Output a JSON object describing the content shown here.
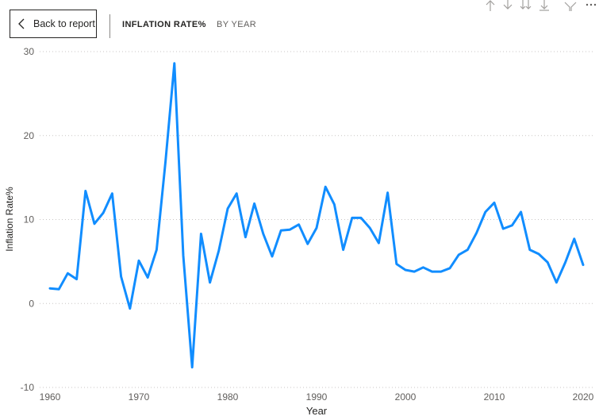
{
  "header": {
    "back_label": "Back to report",
    "title": "INFLATION RATE%",
    "subtitle": "BY YEAR"
  },
  "toolbar": {
    "icons": [
      "arrow-up-icon",
      "arrow-down-icon",
      "double-arrow-down-icon",
      "expand-hierarchy-icon",
      "filter-icon",
      "more-options-icon"
    ]
  },
  "colors": {
    "series": "#118dff",
    "grid": "#c8c6c4",
    "text": "#605e5c"
  },
  "chart_data": {
    "type": "line",
    "title": "",
    "xlabel": "Year",
    "ylabel": "Inflation Rate%",
    "xlim": [
      1960,
      2020
    ],
    "ylim": [
      -10,
      30
    ],
    "x_ticks": [
      1960,
      1970,
      1980,
      1990,
      2000,
      2010,
      2020
    ],
    "y_ticks": [
      -10,
      0,
      10,
      20,
      30
    ],
    "grid": true,
    "series": [
      {
        "name": "",
        "x": [
          1960,
          1961,
          1962,
          1963,
          1964,
          1965,
          1966,
          1967,
          1968,
          1969,
          1970,
          1971,
          1972,
          1973,
          1974,
          1975,
          1976,
          1977,
          1978,
          1979,
          1980,
          1981,
          1982,
          1983,
          1984,
          1985,
          1986,
          1987,
          1988,
          1989,
          1990,
          1991,
          1992,
          1993,
          1994,
          1995,
          1996,
          1997,
          1998,
          1999,
          2000,
          2001,
          2002,
          2003,
          2004,
          2005,
          2006,
          2007,
          2008,
          2009,
          2010,
          2011,
          2012,
          2013,
          2014,
          2015,
          2016,
          2017,
          2018,
          2019,
          2020
        ],
        "y": [
          1.8,
          1.7,
          3.6,
          2.9,
          13.4,
          9.5,
          10.8,
          13.1,
          3.2,
          -0.6,
          5.1,
          3.1,
          6.4,
          16.9,
          28.6,
          5.7,
          -7.6,
          8.3,
          2.5,
          6.3,
          11.3,
          13.1,
          7.9,
          11.9,
          8.3,
          5.6,
          8.7,
          8.8,
          9.4,
          7.1,
          9.0,
          13.9,
          11.8,
          6.4,
          10.2,
          10.2,
          9.0,
          7.2,
          13.2,
          4.7,
          4.0,
          3.8,
          4.3,
          3.8,
          3.8,
          4.2,
          5.8,
          6.4,
          8.4,
          10.9,
          12.0,
          8.9,
          9.3,
          10.9,
          6.4,
          5.9,
          4.9,
          2.5,
          4.9,
          7.7,
          4.6
        ]
      }
    ]
  }
}
